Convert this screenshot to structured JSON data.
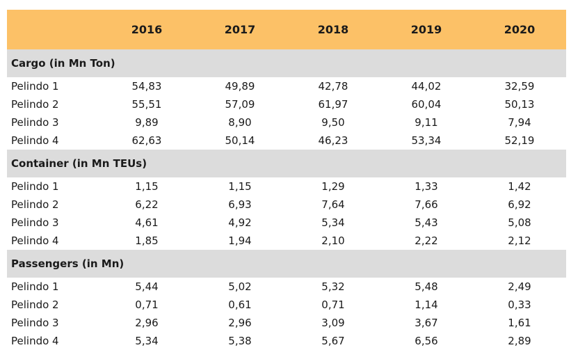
{
  "header": {
    "years": [
      "2016",
      "2017",
      "2018",
      "2019",
      "2020"
    ]
  },
  "sections": [
    {
      "title": "Cargo (in Mn Ton)",
      "rows": [
        {
          "label": "Pelindo 1",
          "values": [
            "54,83",
            "49,89",
            "42,78",
            "44,02",
            "32,59"
          ]
        },
        {
          "label": "Pelindo 2",
          "values": [
            "55,51",
            "57,09",
            "61,97",
            "60,04",
            "50,13"
          ]
        },
        {
          "label": "Pelindo 3",
          "values": [
            "9,89",
            "8,90",
            "9,50",
            "9,11",
            "7,94"
          ]
        },
        {
          "label": "Pelindo 4",
          "values": [
            "62,63",
            "50,14",
            "46,23",
            "53,34",
            "52,19"
          ]
        }
      ]
    },
    {
      "title": "Container (in Mn TEUs)",
      "rows": [
        {
          "label": "Pelindo 1",
          "values": [
            "1,15",
            "1,15",
            "1,29",
            "1,33",
            "1,42"
          ]
        },
        {
          "label": "Pelindo 2",
          "values": [
            "6,22",
            "6,93",
            "7,64",
            "7,66",
            "6,92"
          ]
        },
        {
          "label": "Pelindo 3",
          "values": [
            "4,61",
            "4,92",
            "5,34",
            "5,43",
            "5,08"
          ]
        },
        {
          "label": "Pelindo 4",
          "values": [
            "1,85",
            "1,94",
            "2,10",
            "2,22",
            "2,12"
          ]
        }
      ]
    },
    {
      "title": "Passengers (in Mn)",
      "rows": [
        {
          "label": "Pelindo 1",
          "values": [
            "5,44",
            "5,02",
            "5,32",
            "5,48",
            "2,49"
          ]
        },
        {
          "label": "Pelindo 2",
          "values": [
            "0,71",
            "0,61",
            "0,71",
            "1,14",
            "0,33"
          ]
        },
        {
          "label": "Pelindo 3",
          "values": [
            "2,96",
            "2,96",
            "3,09",
            "3,67",
            "1,61"
          ]
        },
        {
          "label": "Pelindo 4",
          "values": [
            "5,34",
            "5,38",
            "5,67",
            "6,56",
            "2,89"
          ]
        }
      ]
    }
  ]
}
